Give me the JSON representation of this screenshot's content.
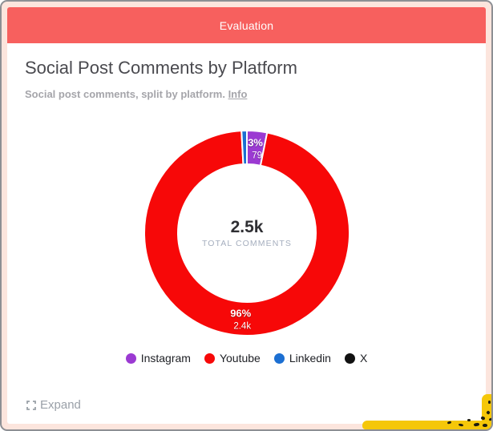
{
  "window": {
    "title": "Evaluation",
    "header_color": "#f7605e"
  },
  "page": {
    "title": "Social Post Comments by Platform",
    "subtitle": "Social post comments, split by platform.",
    "info_link": "Info"
  },
  "chart_data": {
    "type": "pie",
    "variant": "donut",
    "title": "Social Post Comments by Platform",
    "center": {
      "value": "2.5k",
      "caption": "TOTAL COMMENTS"
    },
    "series": [
      {
        "name": "Instagram",
        "value": 79,
        "color": "#9b3ad2",
        "percent_label": "3%",
        "value_label": "79"
      },
      {
        "name": "Youtube",
        "value": 2400,
        "color": "#f70808",
        "percent_label": "96%",
        "value_label": "2.4k"
      },
      {
        "name": "Linkedin",
        "value": 21,
        "color": "#1c6fd2",
        "percent_label": "",
        "value_label": ""
      },
      {
        "name": "X",
        "value": 0,
        "color": "#111111",
        "percent_label": "",
        "value_label": ""
      }
    ],
    "start_angle_deg": 0,
    "direction": "clockwise",
    "legend_position": "bottom"
  },
  "footer": {
    "expand_label": "Expand"
  }
}
